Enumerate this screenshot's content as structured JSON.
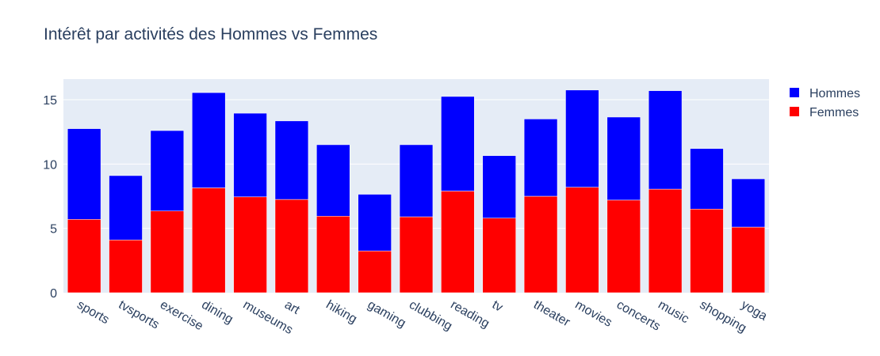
{
  "chart_data": {
    "type": "bar",
    "barmode": "stack",
    "title": "Intérêt par activités des Hommes vs Femmes",
    "xlabel": "",
    "ylabel": "",
    "categories": [
      "sports",
      "tvsports",
      "exercise",
      "dining",
      "museums",
      "art",
      "hiking",
      "gaming",
      "clubbing",
      "reading",
      "tv",
      "theater",
      "movies",
      "concerts",
      "music",
      "shopping",
      "yoga"
    ],
    "series": [
      {
        "name": "Femmes",
        "color": "#ff0000",
        "values": [
          5.7,
          4.1,
          6.35,
          8.15,
          7.45,
          7.25,
          5.95,
          3.25,
          5.9,
          7.9,
          5.8,
          7.5,
          8.2,
          7.2,
          8.05,
          6.5,
          5.1
        ]
      },
      {
        "name": "Hommes",
        "color": "#0000ff",
        "values": [
          7.05,
          5.0,
          6.25,
          7.4,
          6.5,
          6.1,
          5.55,
          4.4,
          5.6,
          7.35,
          4.85,
          6.0,
          7.55,
          6.45,
          7.65,
          4.7,
          3.75
        ]
      }
    ],
    "legend_order": [
      "Hommes",
      "Femmes"
    ],
    "yticks": [
      0,
      5,
      10,
      15
    ],
    "ylim": [
      0,
      16.6
    ],
    "grid": true,
    "legend_position": "top-right",
    "plot_background": "#e5ecf6"
  }
}
